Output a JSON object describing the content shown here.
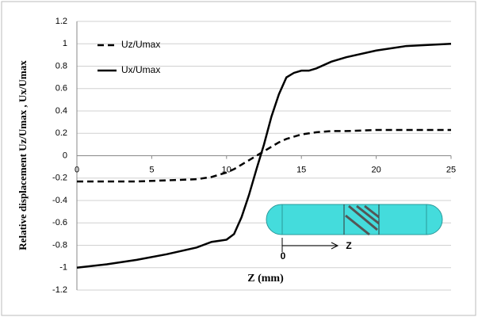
{
  "chart_data": {
    "type": "line",
    "x_label": "Z  (mm)",
    "y_label": "Relative displacement Uz/Umax , Ux/Umax",
    "x": [
      0,
      2,
      4,
      6,
      8,
      9,
      9.5,
      10,
      10.5,
      11,
      11.5,
      12,
      12.5,
      13,
      13.5,
      14,
      14.5,
      15,
      15.5,
      16,
      17,
      18,
      20,
      22,
      25
    ],
    "series": [
      {
        "name": "Uz/Umax",
        "color": "#000000",
        "dash": true,
        "values": [
          -0.23,
          -0.23,
          -0.23,
          -0.22,
          -0.21,
          -0.19,
          -0.17,
          -0.15,
          -0.12,
          -0.08,
          -0.04,
          0,
          0.04,
          0.08,
          0.12,
          0.15,
          0.17,
          0.19,
          0.2,
          0.21,
          0.22,
          0.22,
          0.23,
          0.23,
          0.23
        ]
      },
      {
        "name": "Ux/Umax",
        "color": "#000000",
        "dash": false,
        "values": [
          -1,
          -0.97,
          -0.93,
          -0.88,
          -0.82,
          -0.77,
          -0.76,
          -0.75,
          -0.7,
          -0.55,
          -0.35,
          -0.12,
          0.1,
          0.35,
          0.55,
          0.7,
          0.74,
          0.76,
          0.76,
          0.78,
          0.84,
          0.88,
          0.94,
          0.98,
          1
        ]
      }
    ],
    "xlim": [
      0,
      25
    ],
    "xticks": [
      0,
      5,
      10,
      15,
      20,
      25
    ],
    "ylim": [
      -1.2,
      1.2
    ],
    "yticks": [
      {
        "value": -1.2,
        "label": "-1.2"
      },
      -1,
      {
        "value": -0.8,
        "label": "-0.8"
      },
      {
        "value": -0.6,
        "label": "-0.6"
      },
      {
        "value": -0.4,
        "label": "-0.4"
      },
      {
        "value": -0.2,
        "label": "-0.2"
      },
      0,
      0.2,
      0.4,
      0.6,
      0.8,
      1,
      1.2
    ],
    "grid": true,
    "legend": "top-left",
    "inset_labels": [
      "0",
      "Z"
    ]
  }
}
